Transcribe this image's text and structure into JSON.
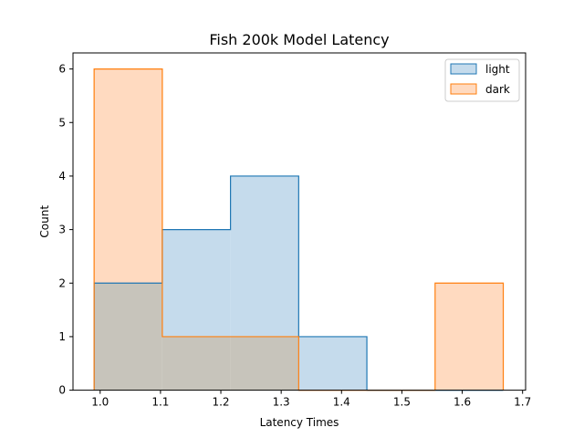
{
  "chart_data": {
    "type": "histogram",
    "title": "Fish 200k Model Latency",
    "xlabel": "Latency Times",
    "ylabel": "Count",
    "xlim": [
      0.955,
      1.705
    ],
    "ylim": [
      0,
      6.3
    ],
    "xticks": [
      1.0,
      1.1,
      1.2,
      1.3,
      1.4,
      1.5,
      1.6,
      1.7
    ],
    "xtick_labels": [
      "1.0",
      "1.1",
      "1.2",
      "1.3",
      "1.4",
      "1.5",
      "1.6",
      "1.7"
    ],
    "yticks": [
      0,
      1,
      2,
      3,
      4,
      5,
      6
    ],
    "ytick_labels": [
      "0",
      "1",
      "2",
      "3",
      "4",
      "5",
      "6"
    ],
    "bin_edges": [
      0.99,
      1.103,
      1.216,
      1.329,
      1.442,
      1.555,
      1.668
    ],
    "series": [
      {
        "name": "light",
        "color": "#1f77b4",
        "fill": "#c5dbec",
        "counts": [
          2,
          3,
          4,
          1,
          0,
          0
        ]
      },
      {
        "name": "dark",
        "color": "#ff7f0e",
        "fill": "#ffdac0",
        "counts": [
          6,
          1,
          1,
          0,
          0,
          2
        ]
      }
    ],
    "overlap_fill": "#c7c4bb",
    "legend": {
      "position": "top-right",
      "entries": [
        "light",
        "dark"
      ]
    }
  }
}
